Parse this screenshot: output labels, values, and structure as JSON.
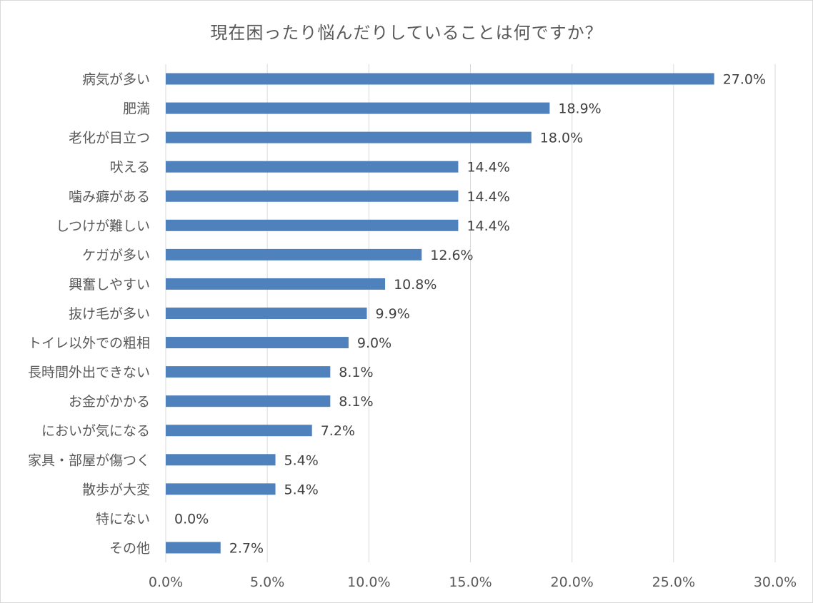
{
  "chart_data": {
    "type": "bar",
    "orientation": "horizontal",
    "title": "現在困ったり悩んだりしていることは何ですか？",
    "categories": [
      "病気が多い",
      "肥満",
      "老化が目立つ",
      "吠える",
      "噛み癖がある",
      "しつけが難しい",
      "ケガが多い",
      "興奮しやすい",
      "抜け毛が多い",
      "トイレ以外での粗相",
      "長時間外出できない",
      "お金がかかる",
      "においが気になる",
      "家具・部屋が傷つく",
      "散歩が大変",
      "特にない",
      "その他"
    ],
    "values": [
      27.0,
      18.9,
      18.0,
      14.4,
      14.4,
      14.4,
      12.6,
      10.8,
      9.9,
      9.0,
      8.1,
      8.1,
      7.2,
      5.4,
      5.4,
      0.0,
      2.7
    ],
    "value_labels": [
      "27.0%",
      "18.9%",
      "18.0%",
      "14.4%",
      "14.4%",
      "14.4%",
      "12.6%",
      "10.8%",
      "9.9%",
      "9.0%",
      "8.1%",
      "8.1%",
      "7.2%",
      "5.4%",
      "5.4%",
      "0.0%",
      "2.7%"
    ],
    "xlim": [
      0,
      30
    ],
    "x_ticks": [
      0,
      5,
      10,
      15,
      20,
      25,
      30
    ],
    "x_tick_labels": [
      "0.0%",
      "5.0%",
      "10.0%",
      "15.0%",
      "20.0%",
      "25.0%",
      "30.0%"
    ],
    "xlabel": "",
    "ylabel": "",
    "grid": "vertical",
    "legend": "none",
    "colors": {
      "bar": "#4f81bd",
      "grid": "#d9d9d9",
      "text": "#595959",
      "value_text": "#404040"
    }
  }
}
